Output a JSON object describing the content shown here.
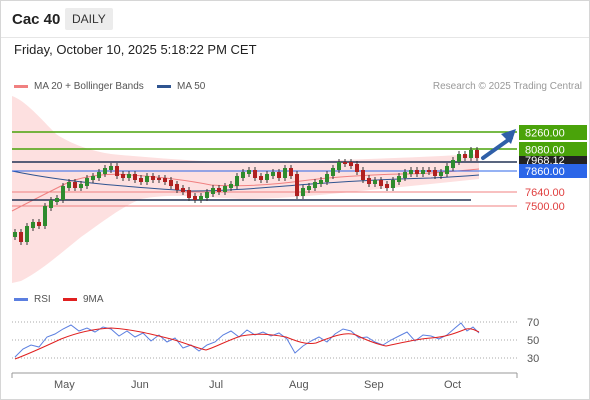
{
  "header": {
    "symbol": "Cac 40",
    "period": "DAILY",
    "datetime": "Friday, October 10, 2025 5:18:22 PM CET"
  },
  "legend": {
    "ma20": "MA 20 + Bollinger Bands",
    "ma50": "MA 50",
    "ma20_color": "#f08080",
    "ma50_color": "#2f5490",
    "credit": "Research © 2025 Trading Central"
  },
  "levels": {
    "r2": "8260.00",
    "r1": "8080.00",
    "last": "7968.12",
    "pivot": "7860.00",
    "s1": "7640.00",
    "s2": "7500.00"
  },
  "rsi_legend": {
    "rsi": "RSI",
    "ma9": "9MA",
    "rsi_color": "#5b7fe0",
    "ma9_color": "#e02020"
  },
  "rsi_axis": [
    "70",
    "50",
    "30"
  ],
  "months": [
    "May",
    "Jun",
    "Jul",
    "Aug",
    "Sep",
    "Oct"
  ],
  "colors": {
    "resistance": "#4aa30a",
    "pivot": "#2b66e8",
    "support": "#f08080",
    "last": "#222222"
  }
}
